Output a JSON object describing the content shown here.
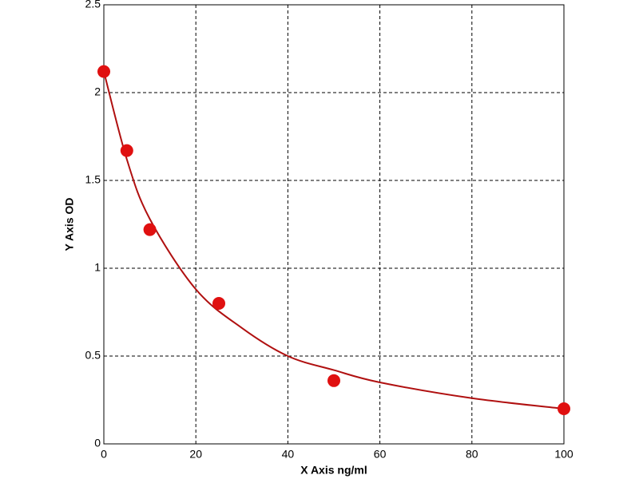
{
  "chart_data": {
    "type": "scatter",
    "x_label": "X Axis ng/ml",
    "y_label": "Y Axis OD",
    "xlim": [
      0,
      100
    ],
    "ylim": [
      0,
      2.5
    ],
    "xticks": [
      0,
      20,
      40,
      60,
      80,
      100
    ],
    "yticks": [
      0,
      0.5,
      1,
      1.5,
      2,
      2.5
    ],
    "grid": true,
    "series": [
      {
        "style": "markers",
        "color": "#e01010",
        "x": [
          0,
          5,
          10,
          25,
          50,
          100
        ],
        "values": [
          2.12,
          1.67,
          1.22,
          0.8,
          0.36,
          0.2
        ]
      },
      {
        "style": "line",
        "color": "#b01010",
        "x": [
          0,
          5,
          10,
          20,
          30,
          40,
          50,
          60,
          80,
          100
        ],
        "values": [
          2.12,
          1.62,
          1.28,
          0.88,
          0.66,
          0.5,
          0.42,
          0.35,
          0.26,
          0.2
        ]
      }
    ]
  }
}
